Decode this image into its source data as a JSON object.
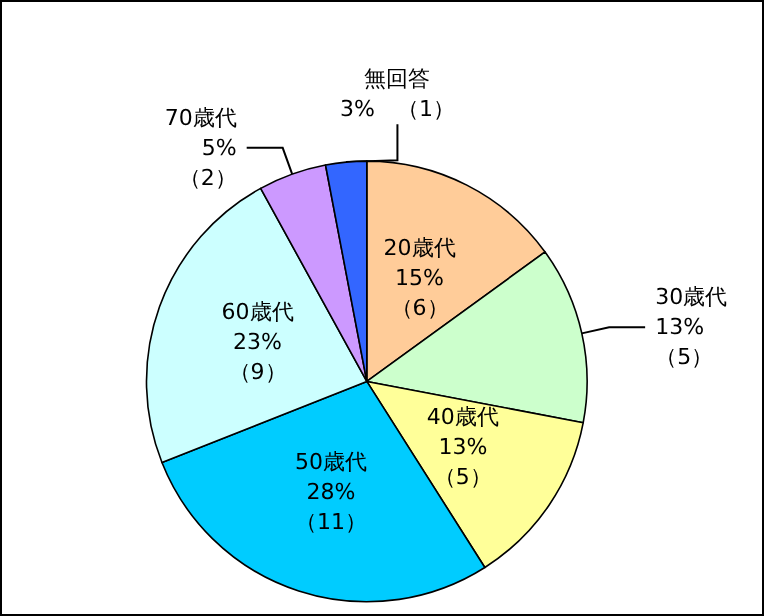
{
  "chart_data": {
    "type": "pie",
    "categories": [
      "20歳代",
      "30歳代",
      "40歳代",
      "50歳代",
      "60歳代",
      "70歳代",
      "無回答"
    ],
    "values": [
      15,
      13,
      13,
      28,
      23,
      5,
      3
    ],
    "value_labels": [
      "15%\n（6）",
      "13%\n（5）",
      "13%\n（5）",
      "28%\n（11）",
      "23%\n（9）",
      "5%\n（2）",
      "3%　（1）"
    ],
    "colors": [
      "#ffcc99",
      "#ccffcc",
      "#ffff99",
      "#00ccff",
      "#ccffff",
      "#cc99ff",
      "#3366ff"
    ],
    "legend": false
  }
}
